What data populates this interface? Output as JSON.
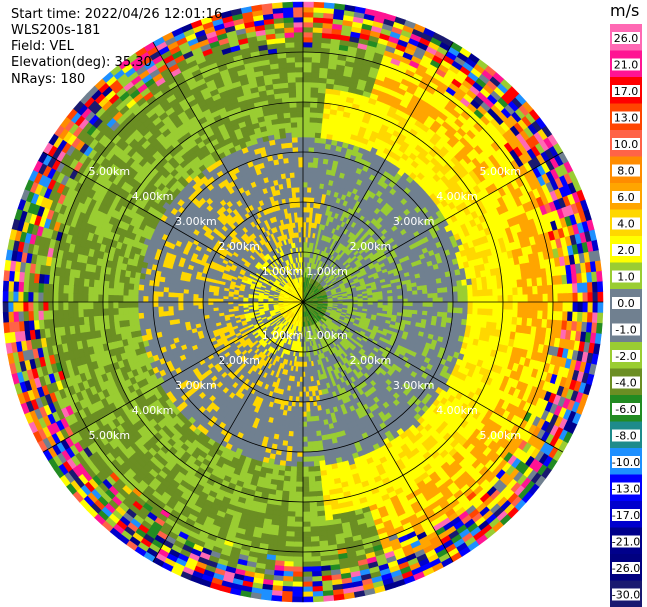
{
  "header": {
    "start_time": "Start time: 2022/04/26 12:01:16",
    "instrument": "WLS200s-181",
    "field": "Field: VEL",
    "elevation": "Elevation(deg): 35.30",
    "nrays": "NRays: 180"
  },
  "colorbar": {
    "unit": "m/s",
    "ticks": [
      "26.0",
      "21.0",
      "17.0",
      "13.0",
      "10.0",
      "8.0",
      "6.0",
      "4.0",
      "2.0",
      "1.0",
      "0.0",
      "-1.0",
      "-2.0",
      "-4.0",
      "-6.0",
      "-8.0",
      "-10.0",
      "-13.0",
      "-17.0",
      "-21.0",
      "-26.0",
      "-30.0"
    ],
    "colors": [
      "#ff69b4",
      "#ff1493",
      "#ff0000",
      "#ff4500",
      "#ff6347",
      "#ff8c00",
      "#ffa500",
      "#ffd700",
      "#ffff00",
      "#9acd32",
      "#708090",
      "#708090",
      "#9acd32",
      "#6b8e23",
      "#228b22",
      "#1e8b8b",
      "#1e90ff",
      "#0000ff",
      "#0000cd",
      "#00008b",
      "#000080",
      "#191970"
    ]
  },
  "chart_data": {
    "type": "heatmap",
    "title": "",
    "field": "VEL",
    "units": "m/s",
    "elevation_deg": 35.3,
    "nrays": 180,
    "range_rings_km": [
      1.0,
      2.0,
      3.0,
      4.0,
      5.0
    ],
    "ring_labels": [
      "1.00km",
      "2.00km",
      "3.00km",
      "4.00km",
      "5.00km"
    ],
    "bands": [
      {
        "r_km": [
          0.0,
          0.5
        ],
        "west": "yellow",
        "east": "green"
      },
      {
        "r_km": [
          0.5,
          1.2
        ],
        "west": "yellow/gray",
        "east": "green/gray"
      },
      {
        "r_km": [
          1.2,
          2.2
        ],
        "west": "gray/yellow",
        "east": "gray/green"
      },
      {
        "r_km": [
          2.2,
          3.3
        ],
        "west": "gray",
        "east": "gray/green"
      },
      {
        "r_km": [
          3.3,
          4.3
        ],
        "west": "yellow/green",
        "east": "yellow"
      },
      {
        "r_km": [
          4.3,
          5.0
        ],
        "west": "green",
        "east": "yellow/orange"
      },
      {
        "r_km": [
          5.0,
          6.0
        ],
        "all": "noise"
      }
    ]
  }
}
